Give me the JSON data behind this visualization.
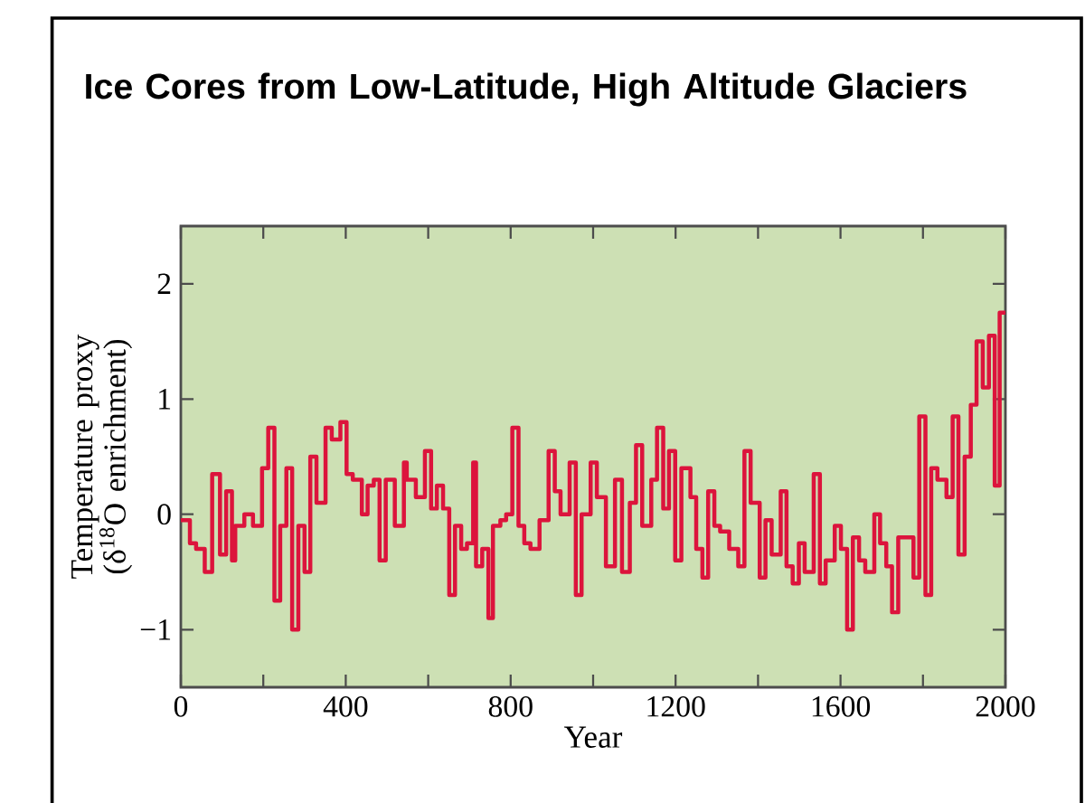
{
  "chart_data": {
    "type": "step",
    "title": "Ice Cores from Low-Latitude, High Altitude Glaciers",
    "xlabel": "Year",
    "ylabel": "Temperature proxy (δ$^{18}$O enrichment)",
    "x": [
      0,
      22,
      37,
      58,
      76,
      95,
      110,
      124,
      132,
      154,
      175,
      197,
      212,
      227,
      241,
      256,
      270,
      285,
      300,
      314,
      329,
      351,
      366,
      387,
      402,
      417,
      439,
      453,
      468,
      482,
      497,
      519,
      541,
      548,
      570,
      592,
      607,
      621,
      636,
      651,
      665,
      680,
      694,
      709,
      716,
      731,
      746,
      757,
      775,
      789,
      804,
      819,
      833,
      848,
      870,
      892,
      907,
      921,
      943,
      958,
      972,
      994,
      1009,
      1031,
      1053,
      1070,
      1089,
      1104,
      1119,
      1141,
      1155,
      1170,
      1184,
      1199,
      1214,
      1236,
      1250,
      1265,
      1279,
      1294,
      1308,
      1330,
      1352,
      1367,
      1382,
      1404,
      1418,
      1433,
      1455,
      1469,
      1484,
      1499,
      1513,
      1535,
      1550,
      1564,
      1586,
      1601,
      1616,
      1630,
      1645,
      1660,
      1682,
      1696,
      1711,
      1725,
      1740,
      1777,
      1791,
      1806,
      1820,
      1835,
      1857,
      1872,
      1886,
      1901,
      1916,
      1930,
      1945,
      1960,
      1974,
      1986,
      2000
    ],
    "values": [
      -0.05,
      -0.25,
      -0.3,
      -0.5,
      0.35,
      -0.35,
      0.2,
      -0.4,
      -0.1,
      0.0,
      -0.1,
      0.4,
      0.75,
      -0.75,
      -0.1,
      0.4,
      -1.0,
      -0.1,
      -0.5,
      0.5,
      0.1,
      0.75,
      0.65,
      0.8,
      0.35,
      0.3,
      0.0,
      0.25,
      0.3,
      -0.4,
      0.3,
      -0.1,
      0.45,
      0.3,
      0.15,
      0.55,
      0.05,
      0.25,
      0.05,
      -0.7,
      -0.1,
      -0.3,
      -0.25,
      0.45,
      -0.45,
      -0.3,
      -0.9,
      -0.1,
      -0.05,
      0.0,
      0.75,
      -0.1,
      -0.25,
      -0.3,
      -0.05,
      0.55,
      0.2,
      0.0,
      0.45,
      -0.7,
      0.0,
      0.45,
      0.15,
      -0.45,
      0.3,
      -0.5,
      0.1,
      0.6,
      -0.1,
      0.3,
      0.75,
      0.05,
      0.55,
      -0.4,
      0.4,
      0.15,
      -0.3,
      -0.55,
      0.2,
      -0.1,
      -0.15,
      -0.3,
      -0.45,
      0.55,
      0.1,
      -0.55,
      -0.05,
      -0.35,
      0.2,
      -0.45,
      -0.6,
      -0.25,
      -0.5,
      0.35,
      -0.6,
      -0.4,
      -0.1,
      -0.3,
      -1.0,
      -0.2,
      -0.4,
      -0.5,
      0.0,
      -0.25,
      -0.45,
      -0.85,
      -0.2,
      -0.55,
      0.85,
      -0.7,
      0.4,
      0.3,
      0.15,
      0.85,
      -0.35,
      0.5,
      0.95,
      1.5,
      1.1,
      1.55,
      0.25,
      1.75,
      1.75
    ],
    "color": "#dc143c",
    "xlim": [
      0,
      2000
    ],
    "ylim": [
      -1.5,
      2.5
    ],
    "xticks": [
      0,
      {
        "value": 200,
        "label": null
      },
      400,
      {
        "value": 600,
        "label": null
      },
      800,
      {
        "value": 1000,
        "label": null
      },
      1200,
      {
        "value": 1400,
        "label": null
      },
      1600,
      {
        "value": 1800,
        "label": null
      },
      2000
    ],
    "yticks": [
      {
        "value": -1,
        "label": "−1"
      },
      0,
      1,
      2
    ]
  }
}
